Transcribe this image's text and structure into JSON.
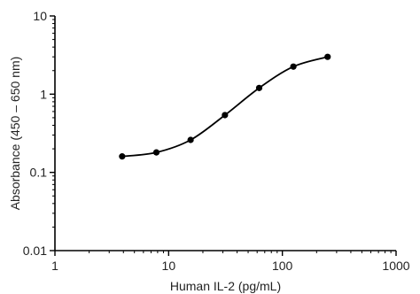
{
  "chart_data": {
    "type": "scatter",
    "xscale": "log",
    "yscale": "log",
    "xlim": [
      1,
      1000
    ],
    "ylim": [
      0.01,
      10
    ],
    "xlabel": "Human IL-2 (pg/mL)",
    "ylabel": "Absorbance (450 – 650 nm)",
    "grid": false,
    "x_ticks": [
      {
        "value": 1,
        "label": "1"
      },
      {
        "value": 10,
        "label": "10"
      },
      {
        "value": 100,
        "label": "100"
      },
      {
        "value": 1000,
        "label": "1000"
      }
    ],
    "y_ticks": [
      {
        "value": 0.01,
        "label": "0.01"
      },
      {
        "value": 0.1,
        "label": "0.1"
      },
      {
        "value": 1,
        "label": "1"
      },
      {
        "value": 10,
        "label": "10"
      }
    ],
    "series": [
      {
        "points": [
          {
            "x": 3.9,
            "y": 0.16
          },
          {
            "x": 7.8,
            "y": 0.18
          },
          {
            "x": 15.6,
            "y": 0.26
          },
          {
            "x": 31.25,
            "y": 0.54
          },
          {
            "x": 62.5,
            "y": 1.2
          },
          {
            "x": 125,
            "y": 2.25
          },
          {
            "x": 250,
            "y": 3.0
          }
        ]
      }
    ],
    "colors": {
      "axis": "#000000",
      "marker": "#000000",
      "line": "#000000",
      "text": "#222222"
    }
  }
}
